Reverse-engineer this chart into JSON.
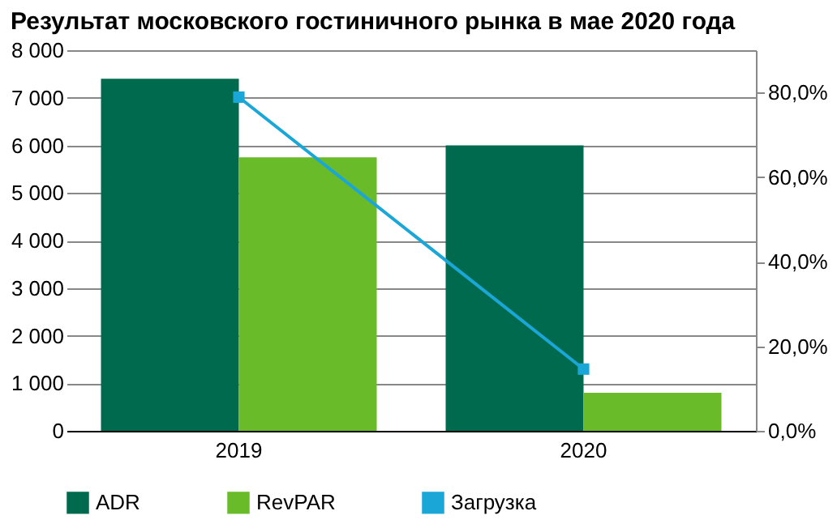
{
  "chart_data": {
    "type": "bar",
    "title": "Результат московского гостиничного рынка в мае 2020 года",
    "categories": [
      "2019",
      "2020"
    ],
    "series": [
      {
        "name": "ADR",
        "color": "#006a4e",
        "values": [
          7400,
          6000
        ]
      },
      {
        "name": "RevPAR",
        "color": "#6abb2a",
        "values": [
          5750,
          800
        ]
      },
      {
        "name": "Загрузка",
        "color": "#1aa7d8",
        "values": [
          78.9,
          14.6
        ],
        "type": "line",
        "axis": "y2",
        "marker": "square"
      }
    ],
    "ylim": [
      0,
      8000
    ],
    "yticks": [
      {
        "value": 0,
        "label": "0"
      },
      {
        "value": 1000,
        "label": "1 000"
      },
      {
        "value": 2000,
        "label": "2 000"
      },
      {
        "value": 3000,
        "label": "3 000"
      },
      {
        "value": 4000,
        "label": "4 000"
      },
      {
        "value": 5000,
        "label": "5 000"
      },
      {
        "value": 6000,
        "label": "6 000"
      },
      {
        "value": 7000,
        "label": "7 000"
      },
      {
        "value": 8000,
        "label": "8 000"
      }
    ],
    "y2lim": [
      0,
      90
    ],
    "y2ticks": [
      {
        "value": 0,
        "label": "0,0%"
      },
      {
        "value": 20,
        "label": "20,0%"
      },
      {
        "value": 40,
        "label": "40,0%"
      },
      {
        "value": 60,
        "label": "60,0%"
      },
      {
        "value": 80,
        "label": "80,0%"
      }
    ],
    "grid": "y",
    "legend": "bottom"
  }
}
